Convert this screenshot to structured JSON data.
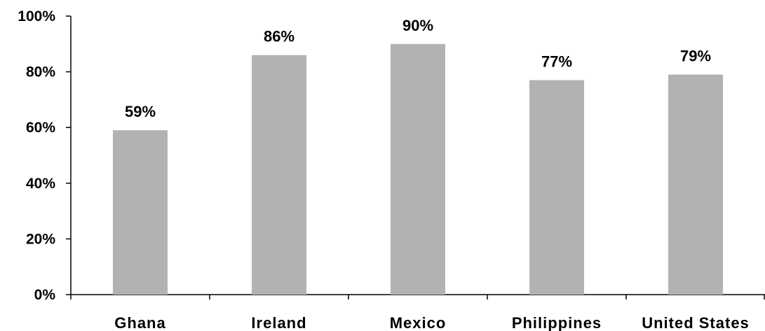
{
  "chart_data": {
    "type": "bar",
    "title": "",
    "xlabel": "",
    "ylabel": "",
    "categories": [
      "Ghana",
      "Ireland",
      "Mexico",
      "Philippines",
      "United States"
    ],
    "values": [
      59,
      86,
      90,
      77,
      79
    ],
    "data_labels": [
      "59%",
      "86%",
      "90%",
      "77%",
      "79%"
    ],
    "ylim": [
      0,
      100
    ],
    "y_ticks": [
      0,
      20,
      40,
      60,
      80,
      100
    ],
    "y_tick_labels": [
      "0%",
      "20%",
      "40%",
      "60%",
      "80%",
      "100%"
    ],
    "grid": false,
    "legend": "none",
    "bar_color": "#b2b2b2"
  }
}
